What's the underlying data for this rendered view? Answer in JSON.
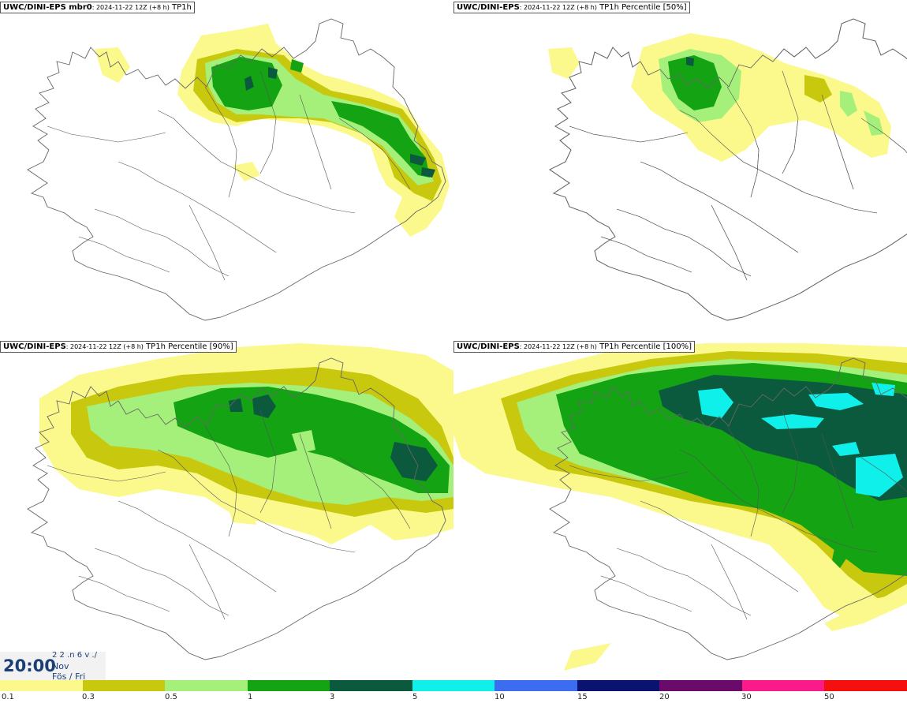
{
  "panels": [
    {
      "model": "UWC/DINI-EPS mbr0",
      "run": ": 2024-11-22 12Z (+8 h)",
      "field": " TP1h"
    },
    {
      "model": "UWC/DINI-EPS",
      "run": ": 2024-11-22 12Z (+8 h)",
      "field": " TP1h Percentile [50%]"
    },
    {
      "model": "UWC/DINI-EPS",
      "run": ": 2024-11-22 12Z (+8 h)",
      "field": " TP1h Percentile [90%]"
    },
    {
      "model": "UWC/DINI-EPS",
      "run": ": 2024-11-22 12Z (+8 h)",
      "field": " TP1h Percentile [100%]"
    }
  ],
  "clock": {
    "time": "20:00",
    "line1": "2 2 .n 6 v ./",
    "line2": "Nov",
    "line3": "Fös / Fri"
  },
  "colorscale": {
    "labels": [
      "0.1",
      "0.3",
      "0.5",
      "1",
      "3",
      "5",
      "10",
      "15",
      "20",
      "30",
      "50"
    ],
    "colors": [
      "#fbf98c",
      "#c8c80e",
      "#a5f07a",
      "#13a313",
      "#0b5a3e",
      "#10f0ea",
      "#3c6df0",
      "#0a1470",
      "#6a0a6a",
      "#fa1a8a",
      "#f50f0f"
    ]
  },
  "precip_colors": {
    "c01": "#fbf98c",
    "c03": "#c8c80e",
    "c05": "#a5f07a",
    "c1": "#13a313",
    "c3": "#0b5a3e",
    "c5": "#10f0ea"
  }
}
